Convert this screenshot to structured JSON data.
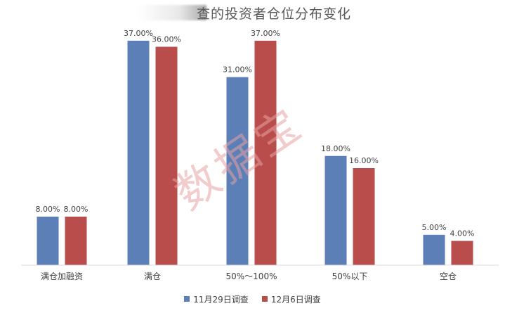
{
  "chart_data": {
    "type": "bar",
    "title": "查的投资者仓位分布变化",
    "categories": [
      "满仓加融资",
      "满仓",
      "50%～100%",
      "50%以下",
      "空仓"
    ],
    "series": [
      {
        "name": "11月29日调查",
        "color": "#5b7fb6",
        "values": [
          8.0,
          37.0,
          31.0,
          18.0,
          5.0
        ]
      },
      {
        "name": "12月6日调查",
        "color": "#b84d4b",
        "values": [
          8.0,
          36.0,
          37.0,
          16.0,
          4.0
        ]
      }
    ],
    "ylim": [
      0,
      40
    ],
    "grid": false,
    "legend_position": "bottom",
    "value_suffix": "%",
    "value_decimals": 2
  },
  "watermark": {
    "text": "数据宝",
    "color": "#e8a3a3"
  }
}
